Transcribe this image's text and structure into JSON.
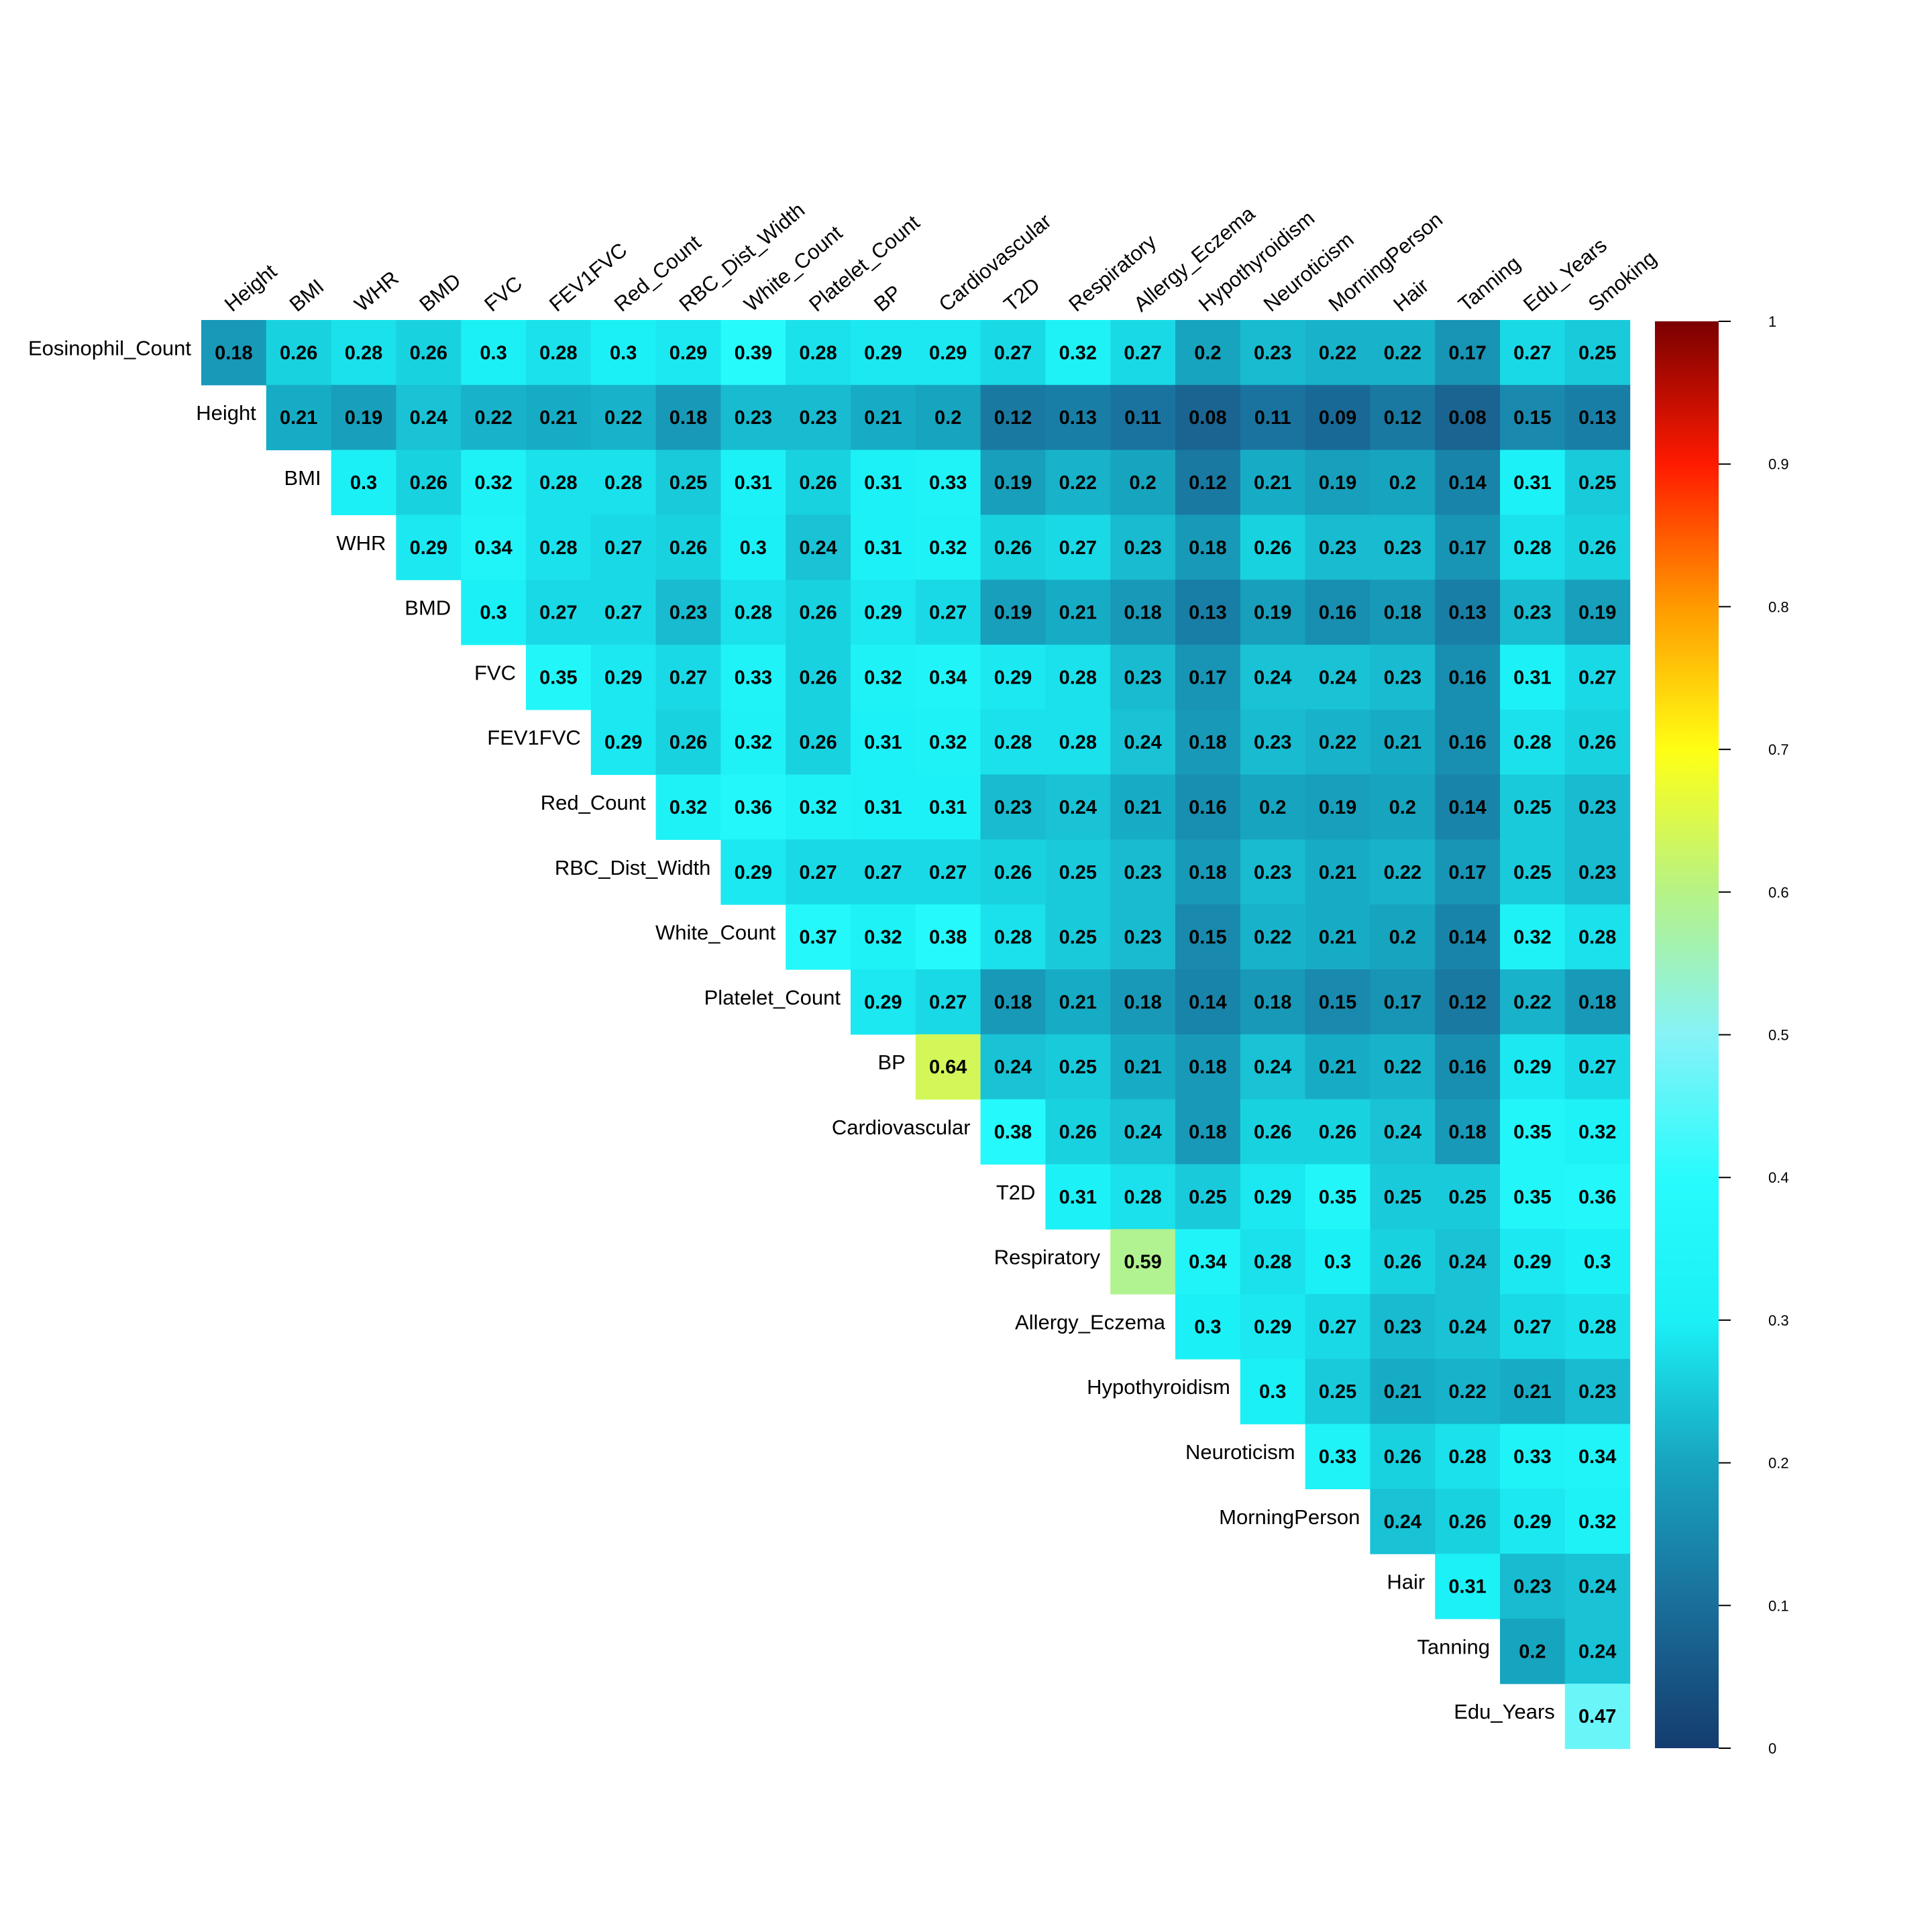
{
  "chart_data": {
    "type": "heatmap",
    "title": "",
    "col_labels": [
      "Height",
      "BMI",
      "WHR",
      "BMD",
      "FVC",
      "FEV1FVC",
      "Red_Count",
      "RBC_Dist_Width",
      "White_Count",
      "Platelet_Count",
      "BP",
      "Cardiovascular",
      "T2D",
      "Respiratory",
      "Allergy_Eczema",
      "Hypothyroidism",
      "Neuroticism",
      "MorningPerson",
      "Hair",
      "Tanning",
      "Edu_Years",
      "Smoking"
    ],
    "row_labels": [
      "Eosinophil_Count",
      "Height",
      "BMI",
      "WHR",
      "BMD",
      "FVC",
      "FEV1FVC",
      "Red_Count",
      "RBC_Dist_Width",
      "White_Count",
      "Platelet_Count",
      "BP",
      "Cardiovascular",
      "T2D",
      "Respiratory",
      "Allergy_Eczema",
      "Hypothyroidism",
      "Neuroticism",
      "MorningPerson",
      "Hair",
      "Tanning",
      "Edu_Years"
    ],
    "values": [
      [
        "0.18",
        "0.26",
        "0.28",
        "0.26",
        "0.3",
        "0.28",
        "0.3",
        "0.29",
        "0.39",
        "0.28",
        "0.29",
        "0.29",
        "0.27",
        "0.32",
        "0.27",
        "0.2",
        "0.23",
        "0.22",
        "0.22",
        "0.17",
        "0.27",
        "0.25"
      ],
      [
        "0.21",
        "0.19",
        "0.24",
        "0.22",
        "0.21",
        "0.22",
        "0.18",
        "0.23",
        "0.23",
        "0.21",
        "0.2",
        "0.12",
        "0.13",
        "0.11",
        "0.08",
        "0.11",
        "0.09",
        "0.12",
        "0.08",
        "0.15",
        "0.13"
      ],
      [
        "0.3",
        "0.26",
        "0.32",
        "0.28",
        "0.28",
        "0.25",
        "0.31",
        "0.26",
        "0.31",
        "0.33",
        "0.19",
        "0.22",
        "0.2",
        "0.12",
        "0.21",
        "0.19",
        "0.2",
        "0.14",
        "0.31",
        "0.25"
      ],
      [
        "0.29",
        "0.34",
        "0.28",
        "0.27",
        "0.26",
        "0.3",
        "0.24",
        "0.31",
        "0.32",
        "0.26",
        "0.27",
        "0.23",
        "0.18",
        "0.26",
        "0.23",
        "0.23",
        "0.17",
        "0.28",
        "0.26"
      ],
      [
        "0.3",
        "0.27",
        "0.27",
        "0.23",
        "0.28",
        "0.26",
        "0.29",
        "0.27",
        "0.19",
        "0.21",
        "0.18",
        "0.13",
        "0.19",
        "0.16",
        "0.18",
        "0.13",
        "0.23",
        "0.19"
      ],
      [
        "0.35",
        "0.29",
        "0.27",
        "0.33",
        "0.26",
        "0.32",
        "0.34",
        "0.29",
        "0.28",
        "0.23",
        "0.17",
        "0.24",
        "0.24",
        "0.23",
        "0.16",
        "0.31",
        "0.27"
      ],
      [
        "0.29",
        "0.26",
        "0.32",
        "0.26",
        "0.31",
        "0.32",
        "0.28",
        "0.28",
        "0.24",
        "0.18",
        "0.23",
        "0.22",
        "0.21",
        "0.16",
        "0.28",
        "0.26"
      ],
      [
        "0.32",
        "0.36",
        "0.32",
        "0.31",
        "0.31",
        "0.23",
        "0.24",
        "0.21",
        "0.16",
        "0.2",
        "0.19",
        "0.2",
        "0.14",
        "0.25",
        "0.23"
      ],
      [
        "0.29",
        "0.27",
        "0.27",
        "0.27",
        "0.26",
        "0.25",
        "0.23",
        "0.18",
        "0.23",
        "0.21",
        "0.22",
        "0.17",
        "0.25",
        "0.23"
      ],
      [
        "0.37",
        "0.32",
        "0.38",
        "0.28",
        "0.25",
        "0.23",
        "0.15",
        "0.22",
        "0.21",
        "0.2",
        "0.14",
        "0.32",
        "0.28"
      ],
      [
        "0.29",
        "0.27",
        "0.18",
        "0.21",
        "0.18",
        "0.14",
        "0.18",
        "0.15",
        "0.17",
        "0.12",
        "0.22",
        "0.18"
      ],
      [
        "0.64",
        "0.24",
        "0.25",
        "0.21",
        "0.18",
        "0.24",
        "0.21",
        "0.22",
        "0.16",
        "0.29",
        "0.27"
      ],
      [
        "0.38",
        "0.26",
        "0.24",
        "0.18",
        "0.26",
        "0.26",
        "0.24",
        "0.18",
        "0.35",
        "0.32"
      ],
      [
        "0.31",
        "0.28",
        "0.25",
        "0.29",
        "0.35",
        "0.25",
        "0.25",
        "0.35",
        "0.36"
      ],
      [
        "0.59",
        "0.34",
        "0.28",
        "0.3",
        "0.26",
        "0.24",
        "0.29",
        "0.3"
      ],
      [
        "0.3",
        "0.29",
        "0.27",
        "0.23",
        "0.24",
        "0.27",
        "0.28"
      ],
      [
        "0.3",
        "0.25",
        "0.21",
        "0.22",
        "0.21",
        "0.23"
      ],
      [
        "0.33",
        "0.26",
        "0.28",
        "0.33",
        "0.34"
      ],
      [
        "0.24",
        "0.26",
        "0.29",
        "0.32"
      ],
      [
        "0.31",
        "0.23",
        "0.24"
      ],
      [
        "0.2",
        "0.24"
      ],
      [
        "0.47"
      ]
    ],
    "colorbar": {
      "range": [
        0,
        1
      ],
      "tick_labels": [
        "0",
        "0.1",
        "0.2",
        "0.3",
        "0.4",
        "0.5",
        "0.6",
        "0.7",
        "0.8",
        "0.9",
        "1"
      ],
      "colors": [
        "#143c6e",
        "#1a6e9a",
        "#17a4bf",
        "#1bf0f6",
        "#28fbfc",
        "#86f3f7",
        "#b6f286",
        "#ffff14",
        "#ff9a00",
        "#ff1a00",
        "#7a0000"
      ]
    },
    "grid": false,
    "legend": "colorbar-right"
  }
}
